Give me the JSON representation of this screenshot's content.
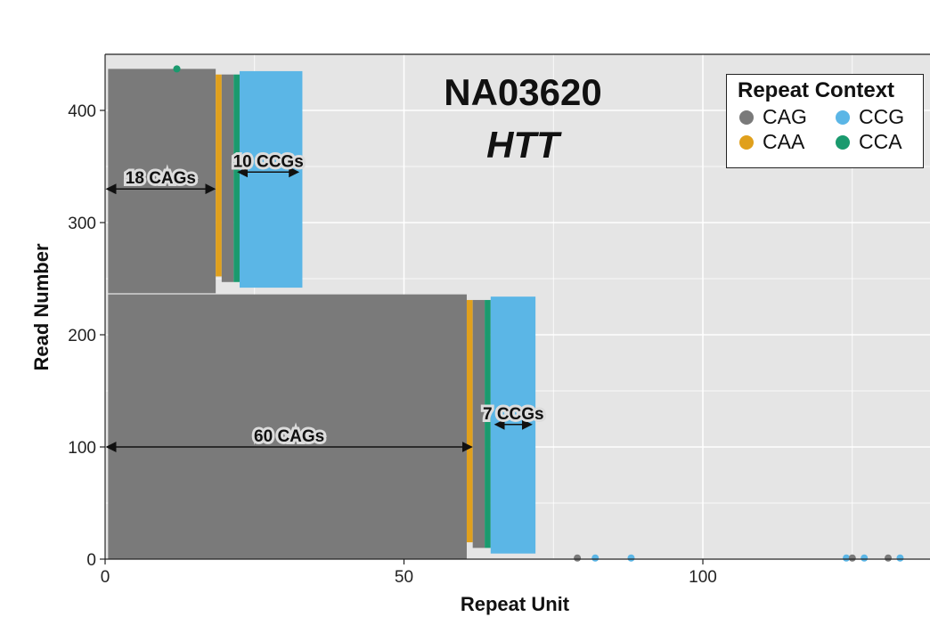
{
  "chart_data": {
    "type": "scatter",
    "title": "NA03620",
    "subtitle": "HTT",
    "xlabel": "Repeat Unit",
    "ylabel": "Read Number",
    "xlim": [
      0,
      138
    ],
    "ylim": [
      0,
      450
    ],
    "x_ticks": [
      0,
      50,
      100
    ],
    "y_ticks": [
      0,
      100,
      200,
      300,
      400
    ],
    "grid": true,
    "legend": {
      "title": "Repeat Context",
      "position": "top-right",
      "entries": [
        {
          "name": "CAG",
          "color": "#7a7a7a"
        },
        {
          "name": "CCG",
          "color": "#5bb6e6"
        },
        {
          "name": "CAA",
          "color": "#e0a01c"
        },
        {
          "name": "CCA",
          "color": "#1a9a6e"
        }
      ]
    },
    "populations": [
      {
        "reads": [
          237,
          437
        ],
        "cag_run": 18,
        "caa_at": 19,
        "ccg_count": 10,
        "ccg_end": 32
      },
      {
        "reads": [
          0,
          236
        ],
        "cag_run": 60,
        "caa_at": 61,
        "ccg_count": 7,
        "ccg_end": 71
      }
    ],
    "annotations": [
      {
        "label": "18 CAGs",
        "x": [
          0,
          18
        ],
        "y": 330
      },
      {
        "label": "10 CCGs",
        "x": [
          22,
          32
        ],
        "y": 345
      },
      {
        "label": "60 CAGs",
        "x": [
          0,
          61
        ],
        "y": 100
      },
      {
        "label": "7 CCGs",
        "x": [
          65,
          71
        ],
        "y": 120
      }
    ],
    "outliers": [
      {
        "x": 79,
        "y": 1,
        "context": "CAG"
      },
      {
        "x": 82,
        "y": 1,
        "context": "CCG"
      },
      {
        "x": 88,
        "y": 1,
        "context": "CCG"
      },
      {
        "x": 124,
        "y": 1,
        "context": "CCG"
      },
      {
        "x": 125,
        "y": 1,
        "context": "CAG"
      },
      {
        "x": 127,
        "y": 1,
        "context": "CCG"
      },
      {
        "x": 131,
        "y": 1,
        "context": "CAG"
      },
      {
        "x": 133,
        "y": 1,
        "context": "CCG"
      },
      {
        "x": 12,
        "y": 437,
        "context": "CCA"
      }
    ]
  },
  "colors": {
    "panel": "#e5e5e5",
    "grid": "#ffffff",
    "cag": "#7a7a7a",
    "ccg": "#5bb6e6",
    "caa": "#e0a01c",
    "cca": "#1a9a6e"
  }
}
